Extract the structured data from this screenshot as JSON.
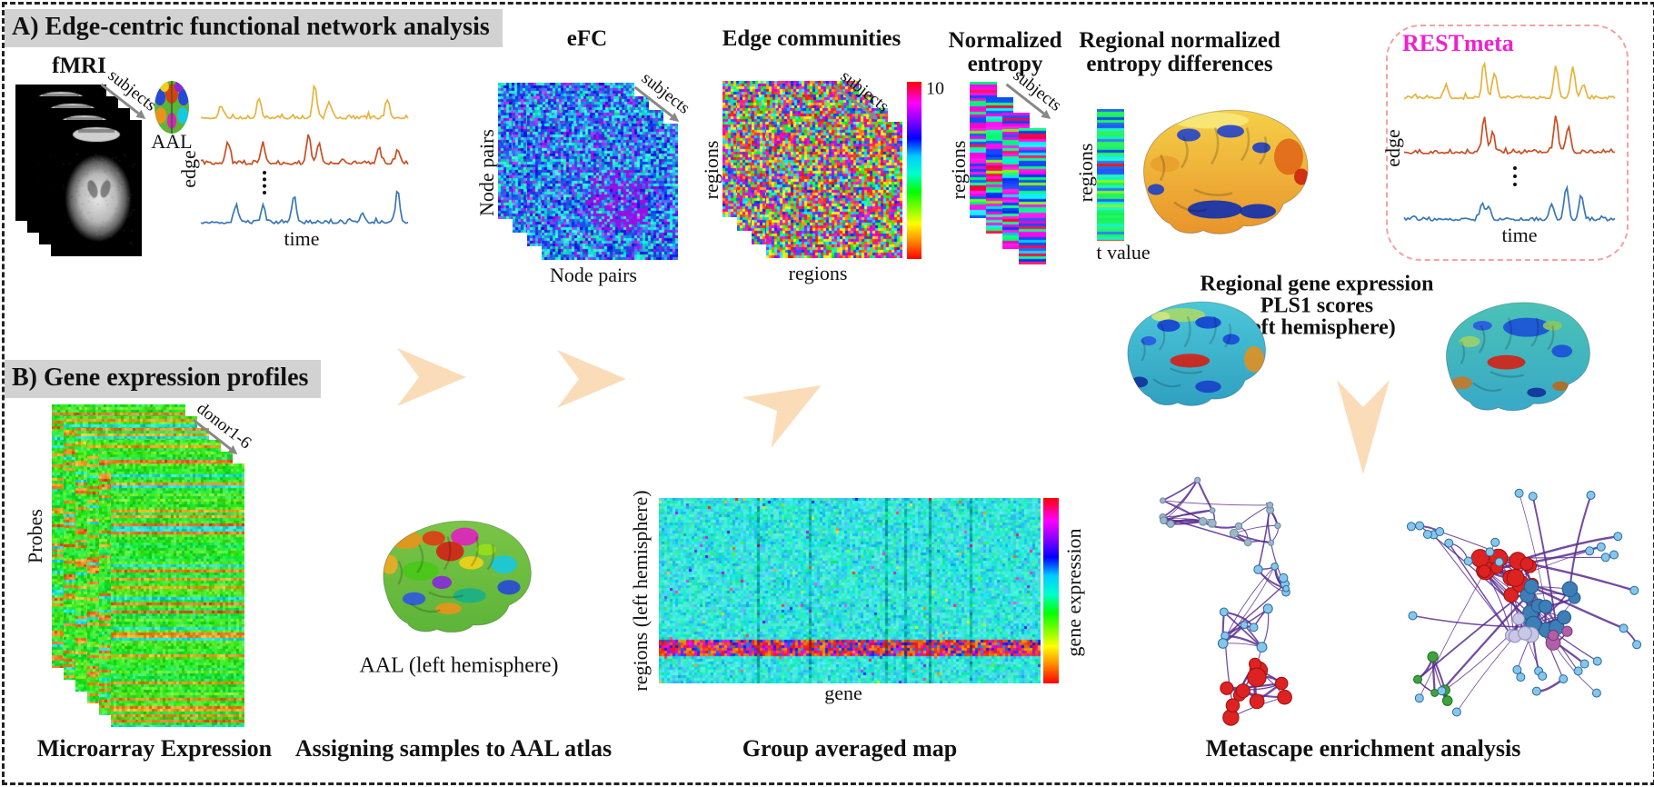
{
  "panel_a": {
    "header": "A) Edge-centric functional network analysis",
    "fmri": {
      "title": "fMRI",
      "stack_label": "subjects"
    },
    "atlas_icon_label": "AAL",
    "edge_traces": {
      "ylabel": "edge",
      "xlabel": "time"
    },
    "efc": {
      "title": "eFC",
      "ylabel": "Node pairs",
      "xlabel": "Node pairs",
      "stack_label": "subjects"
    },
    "edge_communities": {
      "title": "Edge communities",
      "ylabel": "regions",
      "xlabel": "regions",
      "stack_label": "subjects",
      "colorbar_top_label": "10"
    },
    "normalized_entropy": {
      "title_line1": "Normalized",
      "title_line2": "entropy",
      "ylabel": "regions",
      "stack_label": "subjects"
    },
    "entropy_diff": {
      "title_line1": "Regional normalized",
      "title_line2": "entropy differences",
      "ylabel": "regions",
      "xlabel": "t value"
    },
    "restmeta": {
      "title": "RESTmeta",
      "ylabel": "edge",
      "xlabel": "time"
    }
  },
  "middle": {
    "pls_title_line1": "Regional gene expression",
    "pls_title_line2": "PLS1 scores",
    "pls_title_line3": "(left hemisphere)"
  },
  "panel_b": {
    "header": "B) Gene expression profiles",
    "microarray": {
      "ylabel": "Probes",
      "stack_label": "donor1-6",
      "caption": "Microarray Expression"
    },
    "aal_atlas": {
      "brain_caption": "AAL (left hemisphere)",
      "caption": "Assigning samples to AAL atlas"
    },
    "group_map": {
      "ylabel": "regions (left hemisphere)",
      "xlabel": "gene",
      "colorbar_label": "gene expression",
      "caption": "Group averaged map"
    },
    "metascape": {
      "caption": "Metascape enrichment analysis"
    }
  },
  "colors": {
    "header_bg": "#d2d2d2",
    "arrow_fill": "#fbdcb8",
    "restmeta_title": "#ee22cc",
    "restmeta_border": "#f2a3a3",
    "trace_yellow": "#e6b33f",
    "trace_red": "#c94e22",
    "trace_blue": "#3a77b5",
    "network_edge": "#5b2d91",
    "node_red": "#dd2222",
    "node_blue": "#3c7eb5",
    "node_lightblue": "#85c6ea",
    "node_lavender": "#c8c8e6",
    "node_green": "#3da43d",
    "node_gray": "#9bb7c9"
  }
}
